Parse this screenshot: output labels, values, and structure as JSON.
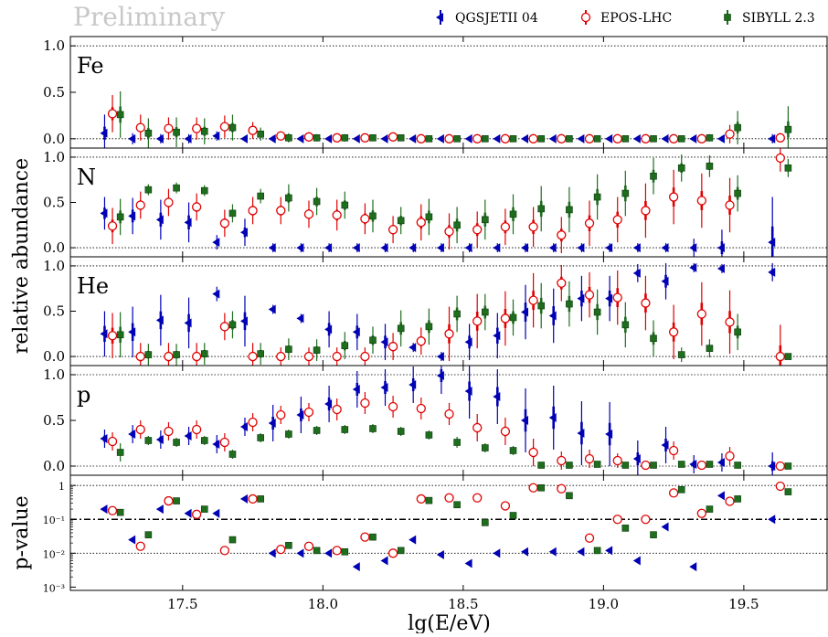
{
  "watermark": "Preliminary",
  "legend": [
    {
      "name": "QGSJETII 04",
      "color": "#0000b4",
      "marker": "left-triangle"
    },
    {
      "name": "EPOS-LHC",
      "color": "#e00000",
      "marker": "open-circle"
    },
    {
      "name": "SIBYLL 2.3",
      "color": "#1e6e1e",
      "marker": "square"
    }
  ],
  "chart_data": {
    "type": "scatter",
    "xlabel": "lg(E/eV)",
    "xlim": [
      17.1,
      19.8
    ],
    "xticks": [
      "17.5",
      "18.0",
      "18.5",
      "19.0",
      "19.5"
    ],
    "shared_ylabel": "relative abundance",
    "energies": [
      17.25,
      17.35,
      17.45,
      17.55,
      17.65,
      17.75,
      17.85,
      17.95,
      18.05,
      18.15,
      18.25,
      18.35,
      18.45,
      18.55,
      18.65,
      18.75,
      18.85,
      18.95,
      19.05,
      19.15,
      19.25,
      19.35,
      19.45,
      19.63
    ],
    "panels": [
      {
        "label": "Fe",
        "ylim": [
          -0.1,
          1.1
        ],
        "yticks": [
          "0.0",
          "0.5",
          "1.0"
        ],
        "series": [
          {
            "name": "QGSJETII 04",
            "values": [
              0.06,
              0.0,
              0.0,
              0.0,
              0.03,
              0.0,
              0.0,
              0.0,
              0.0,
              0.0,
              0.0,
              0.0,
              0.0,
              0.0,
              0.0,
              0.0,
              0.0,
              0.0,
              0.0,
              0.0,
              0.0,
              0.0,
              0.0,
              0.0
            ],
            "err": [
              0.2,
              0.06,
              0.05,
              0.05,
              0.05,
              0.03,
              0.03,
              0.02,
              0.02,
              0.02,
              0.02,
              0.02,
              0.02,
              0.02,
              0.02,
              0.02,
              0.02,
              0.02,
              0.02,
              0.02,
              0.02,
              0.02,
              0.03,
              0.05
            ]
          },
          {
            "name": "EPOS-LHC",
            "values": [
              0.27,
              0.12,
              0.11,
              0.11,
              0.13,
              0.09,
              0.03,
              0.02,
              0.01,
              0.01,
              0.02,
              0.0,
              0.0,
              0.0,
              0.0,
              0.0,
              0.0,
              0.0,
              0.0,
              0.0,
              0.0,
              0.0,
              0.05,
              0.01
            ],
            "err": [
              0.2,
              0.14,
              0.12,
              0.12,
              0.12,
              0.09,
              0.05,
              0.05,
              0.04,
              0.03,
              0.04,
              0.02,
              0.02,
              0.02,
              0.02,
              0.02,
              0.02,
              0.02,
              0.02,
              0.02,
              0.02,
              0.02,
              0.1,
              0.05
            ]
          },
          {
            "name": "SIBYLL 2.3",
            "values": [
              0.26,
              0.06,
              0.07,
              0.08,
              0.12,
              0.05,
              0.01,
              0.01,
              0.01,
              0.01,
              0.01,
              0.0,
              0.0,
              0.0,
              0.0,
              0.0,
              0.0,
              0.0,
              0.0,
              0.0,
              0.0,
              0.01,
              0.12,
              0.1
            ],
            "err": [
              0.25,
              0.16,
              0.16,
              0.14,
              0.14,
              0.07,
              0.05,
              0.04,
              0.04,
              0.03,
              0.03,
              0.02,
              0.02,
              0.02,
              0.02,
              0.02,
              0.02,
              0.02,
              0.02,
              0.02,
              0.03,
              0.04,
              0.18,
              0.25
            ]
          }
        ]
      },
      {
        "label": "N",
        "ylim": [
          -0.1,
          1.1
        ],
        "yticks": [
          "0.0",
          "0.5",
          "1.0"
        ],
        "series": [
          {
            "name": "QGSJETII 04",
            "values": [
              0.38,
              0.35,
              0.31,
              0.28,
              0.06,
              0.17,
              0.0,
              0.0,
              0.0,
              0.0,
              0.0,
              0.0,
              0.0,
              0.0,
              0.0,
              0.0,
              0.0,
              0.0,
              0.0,
              0.0,
              0.0,
              0.0,
              0.0,
              0.06
            ],
            "err": [
              0.18,
              0.2,
              0.22,
              0.22,
              0.08,
              0.15,
              0.05,
              0.05,
              0.05,
              0.05,
              0.05,
              0.05,
              0.05,
              0.05,
              0.05,
              0.05,
              0.05,
              0.05,
              0.05,
              0.05,
              0.05,
              0.1,
              0.2,
              0.5
            ]
          },
          {
            "name": "EPOS-LHC",
            "values": [
              0.24,
              0.47,
              0.5,
              0.45,
              0.27,
              0.41,
              0.41,
              0.37,
              0.36,
              0.32,
              0.2,
              0.28,
              0.18,
              0.2,
              0.23,
              0.23,
              0.14,
              0.27,
              0.31,
              0.41,
              0.56,
              0.52,
              0.47,
              0.99
            ],
            "err": [
              0.2,
              0.15,
              0.15,
              0.15,
              0.15,
              0.15,
              0.15,
              0.15,
              0.17,
              0.17,
              0.15,
              0.2,
              0.2,
              0.2,
              0.2,
              0.22,
              0.2,
              0.25,
              0.25,
              0.3,
              0.3,
              0.3,
              0.3,
              0.15
            ]
          },
          {
            "name": "SIBYLL 2.3",
            "values": [
              0.34,
              0.64,
              0.66,
              0.63,
              0.38,
              0.57,
              0.55,
              0.51,
              0.47,
              0.35,
              0.3,
              0.34,
              0.25,
              0.31,
              0.37,
              0.43,
              0.42,
              0.56,
              0.6,
              0.79,
              0.88,
              0.9,
              0.6,
              0.88
            ],
            "err": [
              0.2,
              0.06,
              0.06,
              0.06,
              0.1,
              0.08,
              0.15,
              0.15,
              0.15,
              0.18,
              0.15,
              0.2,
              0.2,
              0.22,
              0.22,
              0.25,
              0.25,
              0.25,
              0.25,
              0.2,
              0.15,
              0.12,
              0.2,
              0.1
            ]
          }
        ]
      },
      {
        "label": "He",
        "ylim": [
          -0.1,
          1.1
        ],
        "yticks": [
          "0.0",
          "0.5",
          "1.0"
        ],
        "series": [
          {
            "name": "QGSJETII 04",
            "values": [
              0.25,
              0.27,
              0.4,
              0.37,
              0.69,
              0.39,
              0.52,
              0.42,
              0.3,
              0.27,
              0.16,
              0.1,
              0.0,
              0.16,
              0.23,
              0.49,
              0.45,
              0.64,
              0.64,
              0.92,
              0.83,
              0.98,
              0.97,
              0.93
            ],
            "err": [
              0.25,
              0.28,
              0.28,
              0.28,
              0.08,
              0.28,
              0.05,
              0.05,
              0.2,
              0.2,
              0.2,
              0.05,
              0.05,
              0.2,
              0.25,
              0.3,
              0.3,
              0.25,
              0.25,
              0.1,
              0.2,
              0.05,
              0.05,
              0.1
            ]
          },
          {
            "name": "EPOS-LHC",
            "values": [
              0.23,
              0.0,
              0.0,
              0.0,
              0.33,
              0.0,
              0.0,
              0.0,
              0.0,
              0.0,
              0.11,
              0.17,
              0.25,
              0.39,
              0.42,
              0.62,
              0.81,
              0.68,
              0.65,
              0.59,
              0.27,
              0.47,
              0.38,
              0.0
            ],
            "err": [
              0.25,
              0.15,
              0.15,
              0.15,
              0.15,
              0.15,
              0.1,
              0.1,
              0.1,
              0.1,
              0.15,
              0.15,
              0.3,
              0.3,
              0.3,
              0.3,
              0.2,
              0.25,
              0.3,
              0.3,
              0.3,
              0.35,
              0.35,
              0.35
            ]
          },
          {
            "name": "SIBYLL 2.3",
            "values": [
              0.24,
              0.02,
              0.02,
              0.03,
              0.35,
              0.03,
              0.08,
              0.07,
              0.12,
              0.18,
              0.31,
              0.33,
              0.47,
              0.49,
              0.43,
              0.56,
              0.58,
              0.49,
              0.35,
              0.2,
              0.02,
              0.09,
              0.27,
              0.0
            ],
            "err": [
              0.25,
              0.12,
              0.12,
              0.12,
              0.15,
              0.12,
              0.12,
              0.12,
              0.15,
              0.15,
              0.2,
              0.2,
              0.2,
              0.2,
              0.2,
              0.25,
              0.25,
              0.25,
              0.25,
              0.2,
              0.08,
              0.1,
              0.2,
              0.02
            ]
          }
        ]
      },
      {
        "label": "p",
        "ylim": [
          -0.1,
          1.1
        ],
        "yticks": [
          "0.0",
          "0.5",
          "1.0"
        ],
        "series": [
          {
            "name": "QGSJETII 04",
            "values": [
              0.3,
              0.35,
              0.29,
              0.33,
              0.24,
              0.43,
              0.47,
              0.56,
              0.68,
              0.84,
              0.86,
              0.89,
              0.99,
              0.82,
              0.76,
              0.5,
              0.53,
              0.36,
              0.35,
              0.08,
              0.23,
              0.02,
              0.04,
              0.0
            ],
            "err": [
              0.1,
              0.1,
              0.1,
              0.1,
              0.1,
              0.1,
              0.2,
              0.2,
              0.2,
              0.2,
              0.2,
              0.2,
              0.2,
              0.3,
              0.3,
              0.35,
              0.35,
              0.35,
              0.35,
              0.2,
              0.2,
              0.1,
              0.1,
              0.15
            ]
          },
          {
            "name": "EPOS-LHC",
            "values": [
              0.27,
              0.4,
              0.38,
              0.4,
              0.26,
              0.48,
              0.56,
              0.59,
              0.62,
              0.69,
              0.65,
              0.63,
              0.57,
              0.42,
              0.38,
              0.15,
              0.06,
              0.08,
              0.06,
              0.01,
              0.17,
              0.01,
              0.11,
              0.0
            ],
            "err": [
              0.1,
              0.1,
              0.1,
              0.1,
              0.1,
              0.1,
              0.1,
              0.1,
              0.12,
              0.12,
              0.12,
              0.12,
              0.12,
              0.15,
              0.15,
              0.15,
              0.1,
              0.1,
              0.08,
              0.04,
              0.1,
              0.03,
              0.1,
              0.02
            ]
          },
          {
            "name": "SIBYLL 2.3",
            "values": [
              0.15,
              0.28,
              0.26,
              0.28,
              0.13,
              0.31,
              0.35,
              0.39,
              0.4,
              0.41,
              0.38,
              0.34,
              0.26,
              0.2,
              0.17,
              0.01,
              0.01,
              0.02,
              0.01,
              0.01,
              0.02,
              0.02,
              0.01,
              0.0
            ],
            "err": [
              0.1,
              0.05,
              0.05,
              0.05,
              0.05,
              0.05,
              0.05,
              0.05,
              0.05,
              0.05,
              0.05,
              0.05,
              0.06,
              0.05,
              0.05,
              0.02,
              0.02,
              0.02,
              0.02,
              0.02,
              0.02,
              0.02,
              0.02,
              0.01
            ]
          }
        ]
      },
      {
        "label": "",
        "ylabel": "p-value",
        "scale": "log",
        "ylim": [
          0.0008,
          2.0
        ],
        "yticks": [
          "10⁻³",
          "10⁻²",
          "10⁻¹",
          "1"
        ],
        "threshold": 0.1,
        "series": [
          {
            "name": "QGSJETII 04",
            "values": [
              0.2,
              0.025,
              0.2,
              0.15,
              0.15,
              0.4,
              0.01,
              0.01,
              0.01,
              0.004,
              0.006,
              0.025,
              0.009,
              0.005,
              0.01,
              0.011,
              0.011,
              0.011,
              0.012,
              0.006,
              0.06,
              0.004,
              0.5,
              0.1
            ]
          },
          {
            "name": "EPOS-LHC",
            "values": [
              0.18,
              0.016,
              0.35,
              0.14,
              0.012,
              0.4,
              0.013,
              0.016,
              0.012,
              0.03,
              0.01,
              0.4,
              0.43,
              0.43,
              0.25,
              0.85,
              0.8,
              0.028,
              0.1,
              0.1,
              0.6,
              0.15,
              0.34,
              0.95
            ]
          },
          {
            "name": "SIBYLL 2.3",
            "values": [
              0.16,
              0.035,
              0.35,
              0.2,
              0.025,
              0.4,
              0.017,
              0.012,
              0.011,
              0.03,
              0.012,
              0.36,
              0.27,
              0.08,
              0.13,
              0.85,
              0.5,
              0.012,
              0.055,
              0.035,
              0.75,
              0.2,
              0.4,
              0.65
            ]
          }
        ]
      }
    ]
  }
}
